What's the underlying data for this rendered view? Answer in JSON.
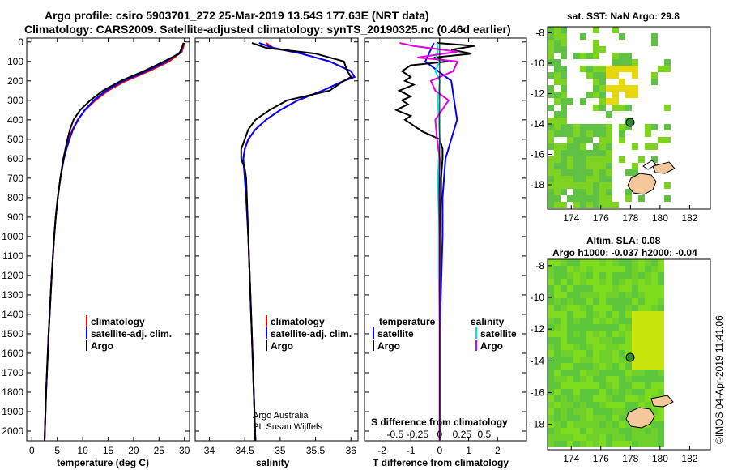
{
  "header": {
    "title_line1": "Argo profile: csiro 5903701_272 25-Mar-2019 13.54S 177.63E (NRT data)",
    "title_line2": "Climatology: CARS2009. Satellite-adjusted climatology: synTS_20190325.nc (0.46d earlier)"
  },
  "colors": {
    "climatology": "#ff0000",
    "satellite": "#0000ff",
    "argo": "#000000",
    "sat_salinity": "#00e5e5",
    "argo_salinity": "#e000e0"
  },
  "depth_ticks": [
    "0",
    "100",
    "200",
    "300",
    "400",
    "500",
    "600",
    "700",
    "800",
    "900",
    "1000",
    "1100",
    "1200",
    "1300",
    "1400",
    "1500",
    "1600",
    "1700",
    "1800",
    "1900",
    "2000"
  ],
  "credits": {
    "line1": "Argo Australia",
    "line2": "PI: Susan Wijffels"
  },
  "stamp": "©IMOS 04-Apr-2019 11:41:06",
  "chart_data": [
    {
      "type": "line",
      "id": "temperature",
      "xlabel": "temperature (deg C)",
      "ylabel": "",
      "xlim": [
        -1,
        31
      ],
      "ylim": [
        2050,
        -20
      ],
      "xticks": [
        "0",
        "5",
        "10",
        "15",
        "20",
        "25",
        "30"
      ],
      "legend": [
        "climatology",
        "satellite-adj. clim.",
        "Argo"
      ],
      "series": [
        {
          "name": "climatology",
          "depth": [
            5,
            50,
            100,
            150,
            200,
            250,
            300,
            350,
            400,
            450,
            500,
            550,
            600,
            700,
            800,
            900,
            1000,
            1200,
            1500,
            1800,
            2050
          ],
          "values": [
            30,
            29.5,
            27,
            23,
            18.5,
            15,
            12.5,
            10.5,
            9,
            8,
            7.2,
            6.7,
            6.2,
            5.6,
            5.1,
            4.7,
            4.4,
            3.9,
            3.3,
            2.8,
            2.5
          ]
        },
        {
          "name": "satellite-adj. clim.",
          "depth": [
            5,
            50,
            100,
            150,
            200,
            250,
            300,
            350,
            400,
            450,
            500,
            550,
            600,
            700,
            800,
            900,
            1000,
            1200,
            1500,
            1800,
            2050
          ],
          "values": [
            29.8,
            29.3,
            26.5,
            22.5,
            18,
            14.6,
            12.2,
            10.4,
            9.1,
            8.1,
            7.4,
            6.8,
            6.3,
            5.6,
            5.1,
            4.7,
            4.4,
            3.9,
            3.3,
            2.8,
            2.5
          ]
        },
        {
          "name": "Argo",
          "depth": [
            5,
            60,
            100,
            150,
            200,
            250,
            300,
            350,
            400,
            450,
            500,
            550,
            600,
            700,
            800,
            900,
            1000,
            1200,
            1500,
            1800,
            2050
          ],
          "values": [
            29.9,
            29,
            26,
            22,
            17.5,
            14,
            11.5,
            9.5,
            8.2,
            7.5,
            7,
            6.6,
            6.2,
            5.6,
            5.1,
            4.7,
            4.4,
            3.9,
            3.3,
            2.8,
            2.5
          ]
        }
      ]
    },
    {
      "type": "line",
      "id": "salinity",
      "xlabel": "salinity",
      "xlim": [
        33.8,
        36.1
      ],
      "ylim": [
        2050,
        -20
      ],
      "xticks": [
        "34",
        "34.5",
        "35",
        "35.5",
        "36"
      ],
      "legend": [
        "climatology",
        "satellite-adj. clim.",
        "Argo"
      ],
      "series": [
        {
          "name": "climatology",
          "depth": [
            5,
            30,
            60,
            100,
            150,
            180,
            200,
            250,
            300,
            350,
            400,
            450,
            500,
            550,
            600,
            700,
            800,
            1000,
            1500,
            2050
          ],
          "values": [
            34.8,
            34.9,
            35.3,
            35.7,
            36.0,
            36.05,
            35.9,
            35.6,
            35.25,
            35.0,
            34.8,
            34.65,
            34.55,
            34.5,
            34.48,
            34.5,
            34.52,
            34.55,
            34.6,
            34.65
          ]
        },
        {
          "name": "satellite-adj. clim.",
          "depth": [
            5,
            30,
            60,
            100,
            150,
            180,
            200,
            250,
            300,
            350,
            400,
            450,
            500,
            550,
            600,
            700,
            800,
            1000,
            1500,
            2050
          ],
          "values": [
            34.7,
            34.9,
            35.3,
            35.7,
            36.0,
            36.05,
            35.9,
            35.6,
            35.25,
            35.0,
            34.8,
            34.65,
            34.55,
            34.5,
            34.48,
            34.5,
            34.52,
            34.55,
            34.6,
            34.65
          ]
        },
        {
          "name": "Argo",
          "depth": [
            5,
            30,
            60,
            100,
            150,
            180,
            200,
            250,
            300,
            350,
            400,
            450,
            500,
            550,
            600,
            650,
            700,
            800,
            1000,
            1500,
            2050
          ],
          "values": [
            34.6,
            34.8,
            35.5,
            35.9,
            35.95,
            36.0,
            35.9,
            35.7,
            35.1,
            34.85,
            34.65,
            34.55,
            34.5,
            34.45,
            34.45,
            34.5,
            34.52,
            34.53,
            34.55,
            34.6,
            34.65
          ]
        }
      ]
    },
    {
      "type": "line",
      "id": "differences",
      "xlabel": "T difference from climatology",
      "xlabel2": "S difference from climatology",
      "xlim": [
        -2.6,
        3
      ],
      "ylim": [
        2050,
        -20
      ],
      "xticks": [
        "-2",
        "-1",
        "0",
        "1",
        "2"
      ],
      "xticks2": [
        "-0.5",
        "-0.25",
        "0",
        "0.25",
        "0.5"
      ],
      "legend_titles": [
        "temperature",
        "salinity"
      ],
      "legend": [
        "satellite",
        "Argo",
        "satellite",
        "Argo"
      ],
      "series": [
        {
          "name": "temperature satellite",
          "depth": [
            5,
            100,
            200,
            300,
            400,
            500,
            600,
            800,
            1000,
            1500,
            2050
          ],
          "values": [
            -0.2,
            -0.5,
            0.4,
            0.5,
            0.6,
            0.4,
            0.2,
            0.1,
            0.1,
            0,
            0
          ]
        },
        {
          "name": "temperature Argo",
          "depth": [
            5,
            20,
            40,
            60,
            80,
            100,
            120,
            150,
            180,
            200,
            220,
            250,
            280,
            300,
            320,
            350,
            380,
            400,
            430,
            460,
            500,
            550,
            600,
            700,
            800,
            1000,
            1500,
            2050
          ],
          "values": [
            -0.1,
            1.2,
            0.4,
            1.1,
            -0.2,
            0.3,
            -1.0,
            -1.3,
            -1.0,
            -1.2,
            -0.9,
            -1.4,
            -1.0,
            -1.3,
            -1.1,
            -1.5,
            -1.0,
            -1.2,
            -0.9,
            -0.6,
            0,
            0.1,
            0.1,
            0.05,
            0.05,
            0,
            0,
            0
          ]
        },
        {
          "name": "salinity satellite",
          "depth": [
            5,
            40,
            80,
            100,
            150,
            200,
            300,
            500,
            700,
            900,
            1200,
            1500,
            2050
          ],
          "values": [
            -0.03,
            -0.02,
            -0.04,
            0,
            -0.05,
            0,
            -0.02,
            0,
            -0.02,
            -0.01,
            -0.01,
            0,
            0
          ]
        },
        {
          "name": "salinity Argo",
          "depth": [
            5,
            20,
            50,
            80,
            100,
            150,
            200,
            250,
            300,
            400,
            500,
            600,
            800,
            1000,
            1500,
            2050
          ],
          "values": [
            -0.45,
            -0.3,
            0.2,
            -0.25,
            0.2,
            0.15,
            -0.1,
            -0.05,
            0.1,
            -0.05,
            -0.03,
            0,
            -0.01,
            0,
            0,
            0
          ]
        }
      ]
    },
    {
      "type": "heatmap",
      "id": "sst_map",
      "title": "sat. SST: NaN Argo: 29.8",
      "xticks": [
        "174",
        "176",
        "178",
        "180",
        "182"
      ],
      "yticks": [
        "-8",
        "-10",
        "-12",
        "-14",
        "-16",
        "-18"
      ],
      "argo_position": {
        "lon": 177.63,
        "lat": -13.54
      }
    },
    {
      "type": "heatmap",
      "id": "sla_map",
      "title1": "Altim. SLA: 0.08",
      "title2": "Argo h1000: -0.037 h2000: -0.04",
      "xticks": [
        "174",
        "176",
        "178",
        "180",
        "182"
      ],
      "yticks": [
        "-8",
        "-10",
        "-12",
        "-14",
        "-16",
        "-18"
      ],
      "argo_position": {
        "lon": 177.63,
        "lat": -13.54
      }
    }
  ]
}
